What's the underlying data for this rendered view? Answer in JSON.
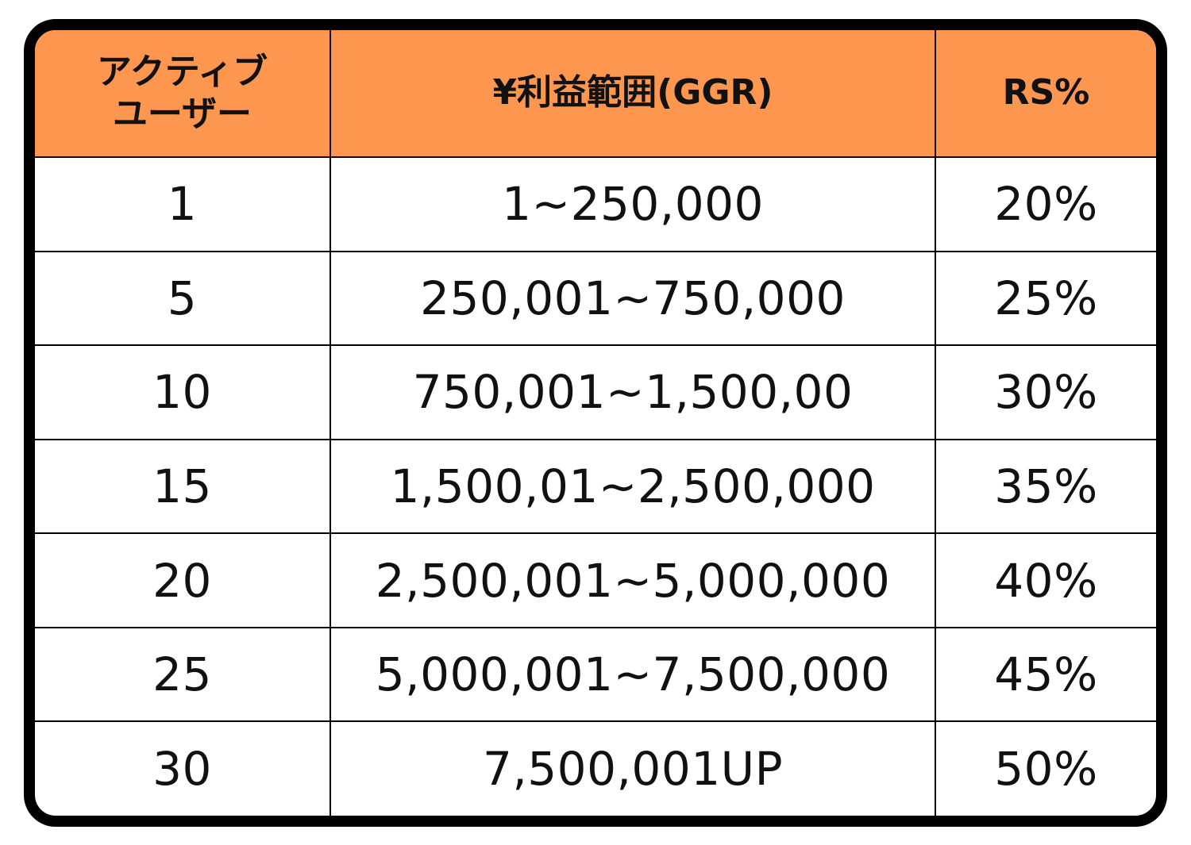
{
  "chart_data": {
    "type": "table",
    "columns": [
      {
        "key": "active_users",
        "label_lines": [
          "アクティブ",
          "ユーザー"
        ]
      },
      {
        "key": "ggr_range",
        "label_lines": [
          "¥利益範囲(GGR)"
        ]
      },
      {
        "key": "rs",
        "label_lines": [
          "RS%"
        ]
      }
    ],
    "rows": [
      {
        "active_users": "1",
        "ggr_range": "1~250,000",
        "rs": "20%"
      },
      {
        "active_users": "5",
        "ggr_range": "250,001~750,000",
        "rs": "25%"
      },
      {
        "active_users": "10",
        "ggr_range": "750,001~1,500,00",
        "rs": "30%"
      },
      {
        "active_users": "15",
        "ggr_range": "1,500,01~2,500,000",
        "rs": "35%"
      },
      {
        "active_users": "20",
        "ggr_range": "2,500,001~5,000,000",
        "rs": "40%"
      },
      {
        "active_users": "25",
        "ggr_range": "5,000,001~7,500,000",
        "rs": "45%"
      },
      {
        "active_users": "30",
        "ggr_range": "7,500,001UP",
        "rs": "50%"
      }
    ]
  },
  "colors": {
    "header_background": "#fd974f",
    "border": "#000000",
    "body_background": "#ffffff"
  }
}
